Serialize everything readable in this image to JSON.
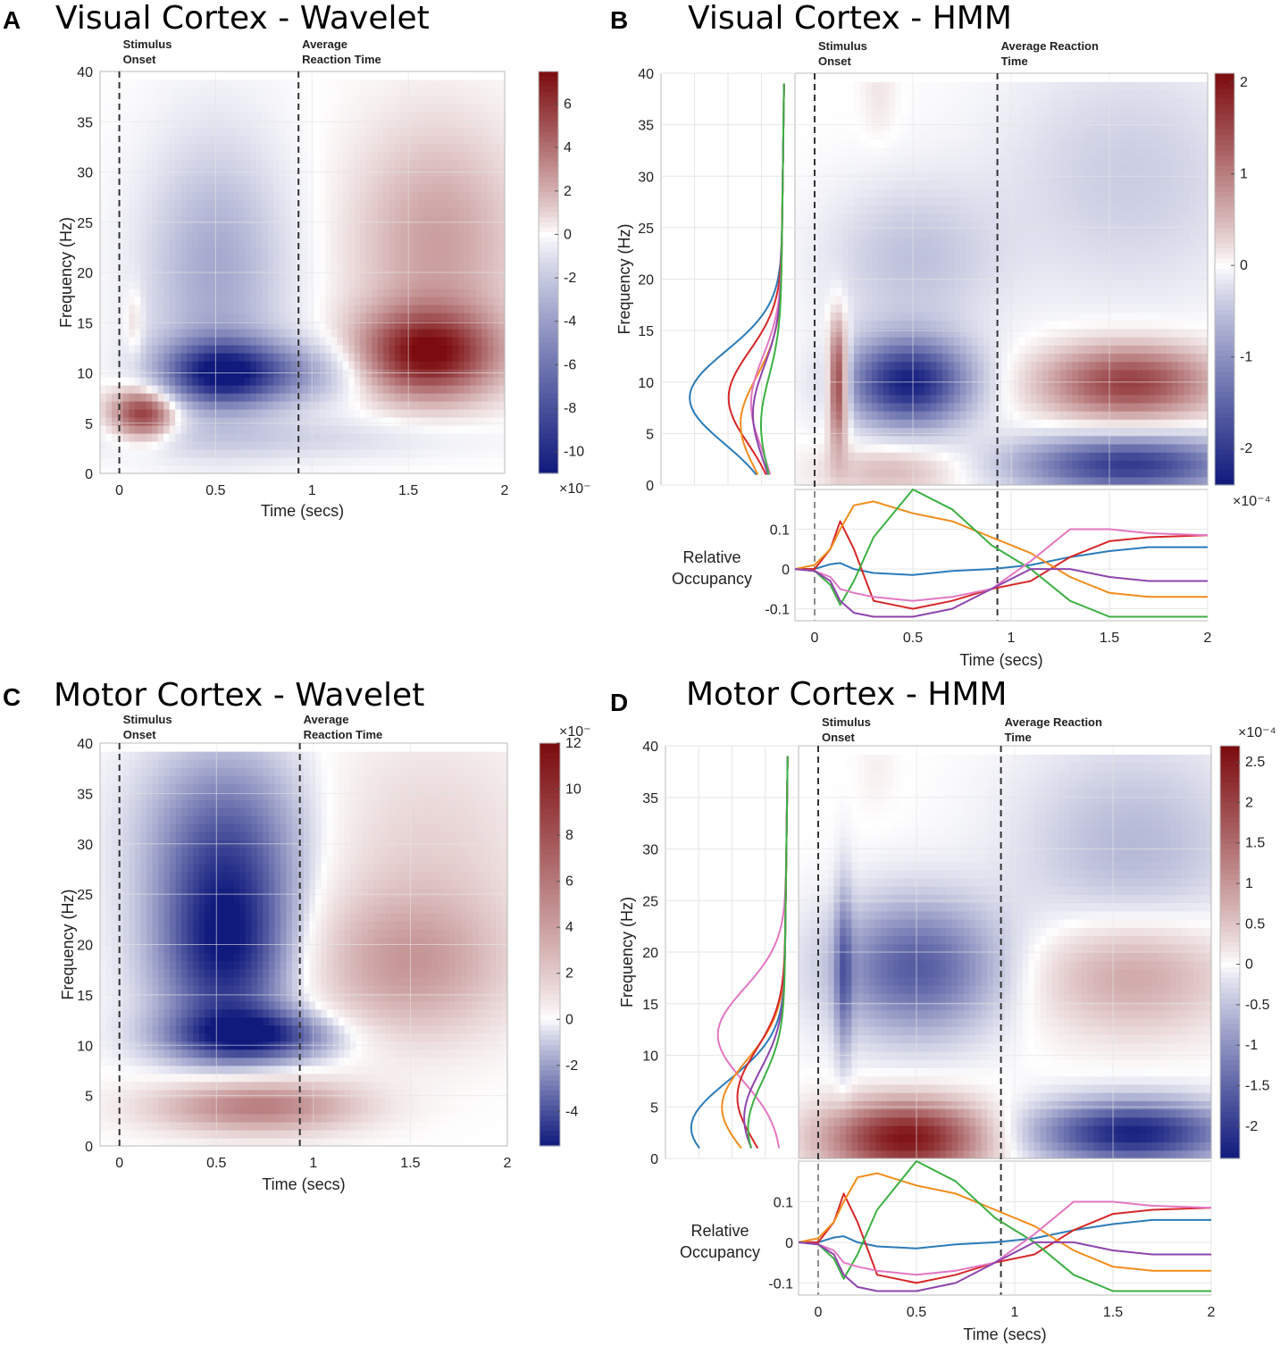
{
  "figure": {
    "colors": {
      "blue_extreme": "#101a7c",
      "white": "#ffffff",
      "red_extreme": "#7b0b0e",
      "axis": "#bbbbbb",
      "grid": "#e6e6e6",
      "dashed": "#333333"
    }
  },
  "chart_data": [
    {
      "id": "A",
      "letter": "A",
      "type": "heatmap",
      "title": "Visual Cortex - Wavelet",
      "xlabel": "Time (secs)",
      "ylabel": "Frequency (Hz)",
      "xlim": [
        -0.1,
        2.0
      ],
      "ylim": [
        0,
        40
      ],
      "xticks": [
        "0",
        "0.5",
        "1",
        "1.5",
        "2"
      ],
      "xtick_values": [
        0,
        0.5,
        1,
        1.5,
        2
      ],
      "yticks": [
        "0",
        "5",
        "10",
        "15",
        "20",
        "25",
        "30",
        "35",
        "40"
      ],
      "ytick_values": [
        0,
        5,
        10,
        15,
        20,
        25,
        30,
        35,
        40
      ],
      "annotations": [
        {
          "x": 0,
          "line1": "Stimulus",
          "line2": "Onset"
        },
        {
          "x": 0.93,
          "line1": "Average",
          "line2": "Reaction Time"
        }
      ],
      "colorbar": {
        "min": -11,
        "max": 7.5,
        "ticks": [
          "6",
          "4",
          "2",
          "0",
          "-2",
          "-4",
          "-6",
          "-8",
          "-10"
        ],
        "tick_values": [
          6,
          4,
          2,
          0,
          -2,
          -4,
          -6,
          -8,
          -10
        ],
        "exponent": "×10⁻"
      },
      "blobs": [
        {
          "t": 0.53,
          "f": 10,
          "st": 0.22,
          "sf": 2.3,
          "a": -10
        },
        {
          "t": 0.5,
          "f": 20,
          "st": 0.25,
          "sf": 9,
          "a": -3.5
        },
        {
          "t": 0.75,
          "f": 3.5,
          "st": 0.7,
          "sf": 1.5,
          "a": -1.5
        },
        {
          "t": 0.95,
          "f": 10,
          "st": 0.22,
          "sf": 2.2,
          "a": -3
        },
        {
          "t": 0.13,
          "f": 6,
          "st": 0.12,
          "sf": 1.8,
          "a": 6.5
        },
        {
          "t": 0.08,
          "f": 15,
          "st": 0.03,
          "sf": 2.5,
          "a": 1.5
        },
        {
          "t": 1.6,
          "f": 12,
          "st": 0.25,
          "sf": 3,
          "a": 7
        },
        {
          "t": 1.65,
          "f": 23,
          "st": 0.3,
          "sf": 8,
          "a": 2.5
        }
      ]
    },
    {
      "id": "B",
      "letter": "B",
      "type": "heatmap",
      "title": "Visual Cortex - HMM",
      "xlabel": "Time (secs)",
      "ylabel": "Frequency (Hz)",
      "xlim": [
        -0.1,
        2.0
      ],
      "ylim": [
        0,
        40
      ],
      "xticks": [
        "0",
        "0.5",
        "1",
        "1.5",
        "2"
      ],
      "xtick_values": [
        0,
        0.5,
        1,
        1.5,
        2
      ],
      "yticks": [
        "0",
        "5",
        "10",
        "15",
        "20",
        "25",
        "30",
        "35",
        "40"
      ],
      "ytick_values": [
        0,
        5,
        10,
        15,
        20,
        25,
        30,
        35,
        40
      ],
      "annotations": [
        {
          "x": 0,
          "line1": "Stimulus",
          "line2": "Onset"
        },
        {
          "x": 0.93,
          "line1": "Average Reaction",
          "line2": "Time"
        }
      ],
      "colorbar": {
        "min": -2.4,
        "max": 2.1,
        "ticks": [
          "2",
          "1",
          "0",
          "-1",
          "-2"
        ],
        "tick_values": [
          2,
          1,
          0,
          -1,
          -2
        ],
        "exponent": "×10⁻⁴"
      },
      "blobs": [
        {
          "t": 0.48,
          "f": 10,
          "st": 0.22,
          "sf": 3,
          "a": -2.3
        },
        {
          "t": 0.5,
          "f": 22,
          "st": 0.3,
          "sf": 5,
          "a": -0.5
        },
        {
          "t": 0.12,
          "f": 10,
          "st": 0.035,
          "sf": 4,
          "a": 2
        },
        {
          "t": 0.4,
          "f": 1.5,
          "st": 0.25,
          "sf": 1.7,
          "a": 0.5
        },
        {
          "t": 0.33,
          "f": 38,
          "st": 0.06,
          "sf": 3,
          "a": 0.15
        },
        {
          "t": 1.6,
          "f": 10,
          "st": 0.3,
          "sf": 2.5,
          "a": 1.6
        },
        {
          "t": 1.6,
          "f": 2,
          "st": 0.4,
          "sf": 2,
          "a": -2
        },
        {
          "t": 1.6,
          "f": 30,
          "st": 0.45,
          "sf": 8,
          "a": -0.4
        }
      ],
      "spectra": {
        "colors": [
          "#2b7bba",
          "#d62728",
          "#f28c1c",
          "#e377c2",
          "#8e44ad",
          "#3cb043"
        ],
        "min_x": [
          0.12,
          0.5,
          0.62,
          0.72,
          0.74,
          0.82
        ],
        "min_f": [
          8.5,
          8.5,
          6,
          8,
          7,
          6
        ]
      },
      "occupancy": {
        "label_line1": "Relative",
        "label_line2": "Occupancy",
        "ylim": [
          -0.13,
          0.2
        ],
        "yticks": [
          "0.1",
          "0",
          "-0.1"
        ],
        "ytick_values": [
          0.1,
          0,
          -0.1
        ],
        "x": [
          -0.1,
          0,
          0.08,
          0.13,
          0.2,
          0.3,
          0.5,
          0.7,
          0.9,
          1.1,
          1.3,
          1.5,
          1.7,
          2.0
        ],
        "series": [
          {
            "name": "blue",
            "color": "#2b7bba",
            "values": [
              0,
              0,
              0.012,
              0.015,
              0,
              -0.01,
              -0.015,
              -0.005,
              0,
              0.01,
              0.03,
              0.045,
              0.055,
              0.055
            ]
          },
          {
            "name": "red",
            "color": "#d62728",
            "values": [
              0,
              0,
              0.05,
              0.12,
              0.05,
              -0.08,
              -0.1,
              -0.08,
              -0.05,
              -0.03,
              0.03,
              0.07,
              0.08,
              0.085
            ]
          },
          {
            "name": "orange",
            "color": "#f28c1c",
            "values": [
              0,
              0.01,
              0.05,
              0.1,
              0.16,
              0.17,
              0.14,
              0.12,
              0.08,
              0.04,
              -0.02,
              -0.06,
              -0.07,
              -0.07
            ]
          },
          {
            "name": "green",
            "color": "#3cb043",
            "values": [
              0,
              -0.005,
              -0.04,
              -0.09,
              -0.03,
              0.08,
              0.2,
              0.15,
              0.06,
              0,
              -0.08,
              -0.12,
              -0.12,
              -0.12
            ]
          },
          {
            "name": "magenta",
            "color": "#e377c2",
            "values": [
              0,
              -0.005,
              -0.02,
              -0.05,
              -0.06,
              -0.07,
              -0.08,
              -0.07,
              -0.05,
              0.02,
              0.1,
              0.1,
              0.09,
              0.085
            ]
          },
          {
            "name": "purple",
            "color": "#8e44ad",
            "values": [
              0,
              -0.005,
              -0.03,
              -0.08,
              -0.11,
              -0.12,
              -0.12,
              -0.1,
              -0.05,
              0,
              0,
              -0.02,
              -0.03,
              -0.03
            ]
          }
        ]
      }
    },
    {
      "id": "C",
      "letter": "C",
      "type": "heatmap",
      "title": "Motor Cortex - Wavelet",
      "xlabel": "Time (secs)",
      "ylabel": "Frequency (Hz)",
      "xlim": [
        -0.1,
        2.0
      ],
      "ylim": [
        0,
        40
      ],
      "xticks": [
        "0",
        "0.5",
        "1",
        "1.5",
        "2"
      ],
      "xtick_values": [
        0,
        0.5,
        1,
        1.5,
        2
      ],
      "yticks": [
        "0",
        "5",
        "10",
        "15",
        "20",
        "25",
        "30",
        "35",
        "40"
      ],
      "ytick_values": [
        0,
        5,
        10,
        15,
        20,
        25,
        30,
        35,
        40
      ],
      "annotations": [
        {
          "x": 0,
          "line1": "Stimulus",
          "line2": "Onset"
        },
        {
          "x": 0.93,
          "line1": "Average",
          "line2": "Reaction Time"
        }
      ],
      "colorbar": {
        "min": -5.5,
        "max": 12,
        "ticks": [
          "12",
          "10",
          "8",
          "6",
          "4",
          "2",
          "0",
          "-2",
          "-4"
        ],
        "tick_values": [
          12,
          10,
          8,
          6,
          4,
          2,
          0,
          -2,
          -4
        ],
        "exponent": "×10⁻"
      },
      "blobs": [
        {
          "t": 0.55,
          "f": 20,
          "st": 0.25,
          "sf": 7,
          "a": -5.5
        },
        {
          "t": 0.7,
          "f": 11,
          "st": 0.3,
          "sf": 1.8,
          "a": -4.5
        },
        {
          "t": 0.55,
          "f": 32,
          "st": 0.3,
          "sf": 6,
          "a": -2.5
        },
        {
          "t": 0.7,
          "f": 4,
          "st": 0.35,
          "sf": 1.8,
          "a": 6
        },
        {
          "t": 1.5,
          "f": 18,
          "st": 0.35,
          "sf": 5,
          "a": 4
        },
        {
          "t": 1.6,
          "f": 30,
          "st": 0.4,
          "sf": 8,
          "a": 1.5
        }
      ]
    },
    {
      "id": "D",
      "letter": "D",
      "type": "heatmap",
      "title": "Motor Cortex - HMM",
      "xlabel": "Time (secs)",
      "ylabel": "Frequency (Hz)",
      "xlim": [
        -0.1,
        2.0
      ],
      "ylim": [
        0,
        40
      ],
      "xticks": [
        "0",
        "0.5",
        "1",
        "1.5",
        "2"
      ],
      "xtick_values": [
        0,
        0.5,
        1,
        1.5,
        2
      ],
      "yticks": [
        "0",
        "5",
        "10",
        "15",
        "20",
        "25",
        "30",
        "35",
        "40"
      ],
      "ytick_values": [
        0,
        5,
        10,
        15,
        20,
        25,
        30,
        35,
        40
      ],
      "annotations": [
        {
          "x": 0,
          "line1": "Stimulus",
          "line2": "Onset"
        },
        {
          "x": 0.93,
          "line1": "Average Reaction",
          "line2": "Time"
        }
      ],
      "colorbar": {
        "min": -2.4,
        "max": 2.7,
        "ticks": [
          "2.5",
          "2",
          "1.5",
          "1",
          "0.5",
          "0",
          "-0.5",
          "-1",
          "-1.5",
          "-2"
        ],
        "tick_values": [
          2.5,
          2,
          1.5,
          1,
          0.5,
          0,
          -0.5,
          -1,
          -1.5,
          -2
        ],
        "exponent": "×10⁻⁴"
      },
      "blobs": [
        {
          "t": 0.5,
          "f": 18.5,
          "st": 0.3,
          "sf": 4.5,
          "a": -1.6
        },
        {
          "t": 0.13,
          "f": 18,
          "st": 0.03,
          "sf": 6,
          "a": -1
        },
        {
          "t": 0.45,
          "f": 2,
          "st": 0.28,
          "sf": 2.5,
          "a": 2.6
        },
        {
          "t": 1.6,
          "f": 2.5,
          "st": 0.35,
          "sf": 2.2,
          "a": -2.3
        },
        {
          "t": 1.6,
          "f": 18,
          "st": 0.35,
          "sf": 4,
          "a": 0.9
        },
        {
          "t": 1.6,
          "f": 30,
          "st": 0.4,
          "sf": 7,
          "a": -0.6
        },
        {
          "t": 0.3,
          "f": 38,
          "st": 0.07,
          "sf": 3,
          "a": 0.1
        }
      ],
      "spectra": {
        "colors": [
          "#2b7bba",
          "#e377c2",
          "#f28c1c",
          "#d62728",
          "#8e44ad",
          "#3cb043"
        ],
        "min_x": [
          0.1,
          0.35,
          0.4,
          0.55,
          0.62,
          0.66
        ],
        "min_f": [
          3,
          12,
          5,
          6,
          4,
          3
        ]
      },
      "occupancy": {
        "label_line1": "Relative",
        "label_line2": "Occupancy",
        "ylim": [
          -0.13,
          0.2
        ],
        "yticks": [
          "0.1",
          "0",
          "-0.1"
        ],
        "ytick_values": [
          0.1,
          0,
          -0.1
        ],
        "x": [
          -0.1,
          0,
          0.08,
          0.13,
          0.2,
          0.3,
          0.5,
          0.7,
          0.9,
          1.1,
          1.3,
          1.5,
          1.7,
          2.0
        ],
        "series": [
          {
            "name": "blue",
            "color": "#2b7bba",
            "values": [
              0,
              0,
              0.012,
              0.015,
              0,
              -0.01,
              -0.015,
              -0.005,
              0,
              0.01,
              0.03,
              0.045,
              0.055,
              0.055
            ]
          },
          {
            "name": "red",
            "color": "#d62728",
            "values": [
              0,
              0,
              0.05,
              0.12,
              0.05,
              -0.08,
              -0.1,
              -0.08,
              -0.05,
              -0.03,
              0.03,
              0.07,
              0.08,
              0.085
            ]
          },
          {
            "name": "orange",
            "color": "#f28c1c",
            "values": [
              0,
              0.01,
              0.05,
              0.1,
              0.16,
              0.17,
              0.14,
              0.12,
              0.08,
              0.04,
              -0.02,
              -0.06,
              -0.07,
              -0.07
            ]
          },
          {
            "name": "green",
            "color": "#3cb043",
            "values": [
              0,
              -0.005,
              -0.04,
              -0.09,
              -0.03,
              0.08,
              0.2,
              0.15,
              0.06,
              0,
              -0.08,
              -0.12,
              -0.12,
              -0.12
            ]
          },
          {
            "name": "magenta",
            "color": "#e377c2",
            "values": [
              0,
              -0.005,
              -0.02,
              -0.05,
              -0.06,
              -0.07,
              -0.08,
              -0.07,
              -0.05,
              0.02,
              0.1,
              0.1,
              0.09,
              0.085
            ]
          },
          {
            "name": "purple",
            "color": "#8e44ad",
            "values": [
              0,
              -0.005,
              -0.03,
              -0.08,
              -0.11,
              -0.12,
              -0.12,
              -0.1,
              -0.05,
              0,
              0,
              -0.02,
              -0.03,
              -0.03
            ]
          }
        ]
      }
    }
  ]
}
